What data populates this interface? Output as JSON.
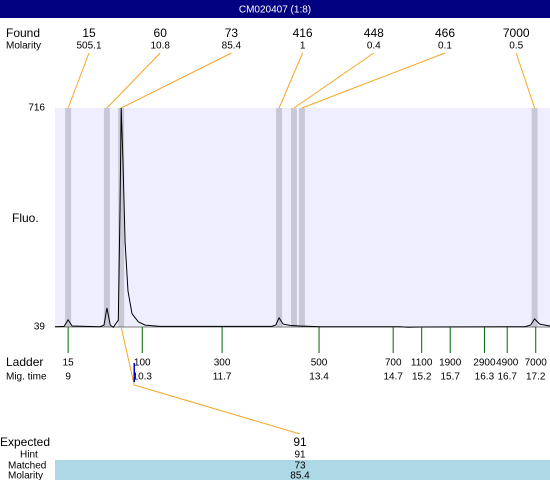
{
  "header": {
    "title": "CM020407 (1:8)"
  },
  "labels": {
    "found": "Found",
    "molarity": "Molarity",
    "fluo": "Fluo.",
    "ladder": "Ladder",
    "mig_time": "Mig. time",
    "expected": "Expected",
    "hint": "Hint",
    "matched": "Matched",
    "molarity_bottom": "Molarity"
  },
  "found": [
    {
      "size": 15,
      "molarity": 505.1,
      "time": 9.0
    },
    {
      "size": 60,
      "molarity": 10.8,
      "time": 9.68
    },
    {
      "size": 73,
      "molarity": 85.4,
      "time": 9.93
    },
    {
      "size": 416,
      "molarity": 1,
      "time": 12.7
    },
    {
      "size": 448,
      "molarity": 0.4,
      "time": 12.96
    },
    {
      "size": 466,
      "molarity": 0.1,
      "time": 13.1
    },
    {
      "size": 7000,
      "molarity": 0.5,
      "time": 17.18
    }
  ],
  "ladder": [
    {
      "size": 15,
      "time": 9
    },
    {
      "size": 100,
      "time": 10.3
    },
    {
      "size": 300,
      "time": 11.7
    },
    {
      "size": 500,
      "time": 13.4
    },
    {
      "size": 700,
      "time": 14.7
    },
    {
      "size": 1100,
      "time": 15.2
    },
    {
      "size": 1900,
      "time": 15.7
    },
    {
      "size": 2900,
      "time": 16.3
    },
    {
      "size": 4900,
      "time": 16.7
    },
    {
      "size": 7000,
      "time": 17.2
    }
  ],
  "expected": {
    "expected": 91,
    "hint": 91,
    "matched": 73,
    "molarity": 85.4
  },
  "chart_data": {
    "type": "line",
    "color": "#000000",
    "x": [
      8.77,
      8.93,
      9.0,
      9.07,
      9.56,
      9.63,
      9.68,
      9.74,
      9.79,
      9.88,
      9.91,
      9.93,
      9.96,
      10.0,
      10.05,
      10.12,
      10.23,
      10.35,
      10.61,
      12.57,
      12.64,
      12.7,
      12.77,
      12.89,
      13.07,
      13.42,
      14.82,
      14.96,
      15.17,
      17.01,
      17.11,
      17.18,
      17.27,
      17.45
    ],
    "values": [
      40,
      41,
      61,
      42,
      40,
      45,
      98,
      45,
      38,
      60,
      400,
      716,
      560,
      300,
      150,
      80,
      55,
      45,
      41,
      41,
      45,
      67,
      48,
      44,
      42,
      40,
      40,
      38,
      39,
      40,
      45,
      64,
      48,
      42
    ],
    "xlim": [
      8.77,
      17.45
    ],
    "ylim": [
      39,
      716
    ],
    "yticks": [
      39,
      716
    ]
  }
}
